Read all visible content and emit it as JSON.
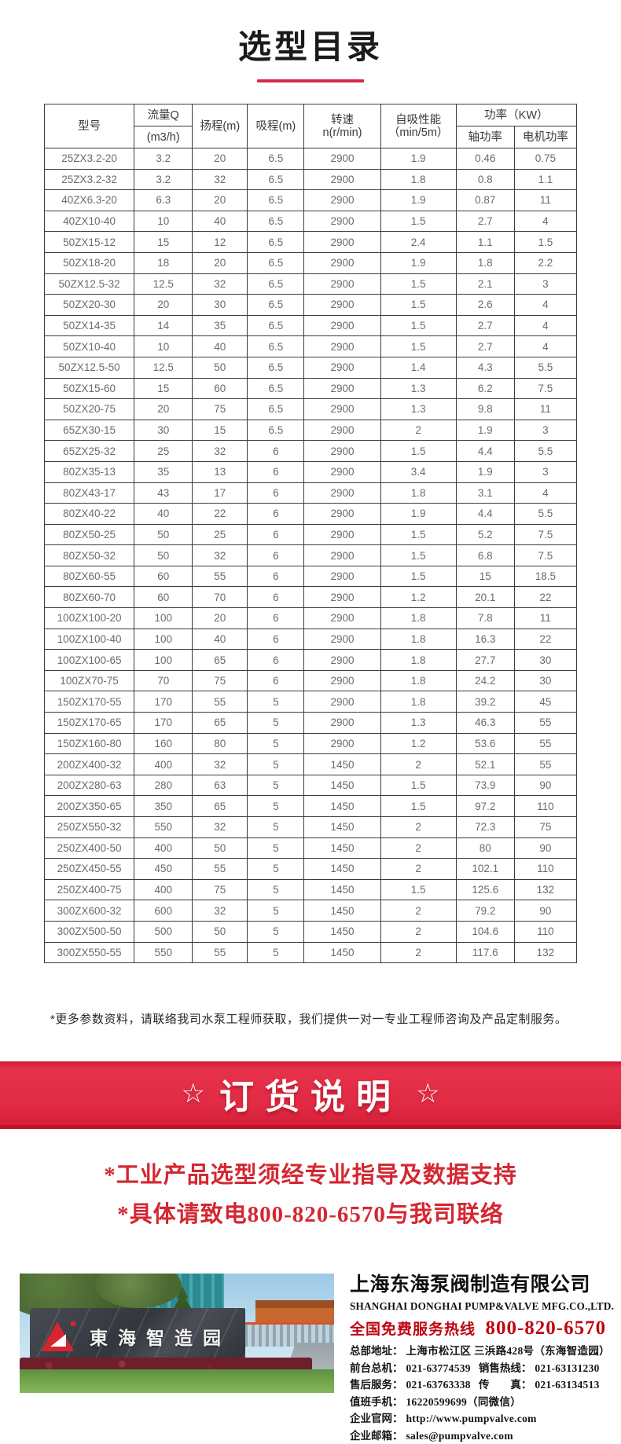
{
  "page": {
    "title": "选型目录"
  },
  "table": {
    "headers": {
      "model": "型号",
      "flow_line1": "流量Q",
      "flow_line2": "(m3/h)",
      "head": "扬程(m)",
      "suction": "吸程(m)",
      "speed_line1": "转速",
      "speed_line2": "n(r/min)",
      "self_priming_line1": "自吸性能",
      "self_priming_line2": "（min/5m）",
      "power_group": "功率（KW）",
      "shaft_power": "轴功率",
      "motor_power": "电机功率"
    },
    "rows": [
      [
        "25ZX3.2-20",
        "3.2",
        "20",
        "6.5",
        "2900",
        "1.9",
        "0.46",
        "0.75"
      ],
      [
        "25ZX3.2-32",
        "3.2",
        "32",
        "6.5",
        "2900",
        "1.8",
        "0.8",
        "1.1"
      ],
      [
        "40ZX6.3-20",
        "6.3",
        "20",
        "6.5",
        "2900",
        "1.9",
        "0.87",
        "11"
      ],
      [
        "40ZX10-40",
        "10",
        "40",
        "6.5",
        "2900",
        "1.5",
        "2.7",
        "4"
      ],
      [
        "50ZX15-12",
        "15",
        "12",
        "6.5",
        "2900",
        "2.4",
        "1.1",
        "1.5"
      ],
      [
        "50ZX18-20",
        "18",
        "20",
        "6.5",
        "2900",
        "1.9",
        "1.8",
        "2.2"
      ],
      [
        "50ZX12.5-32",
        "12.5",
        "32",
        "6.5",
        "2900",
        "1.5",
        "2.1",
        "3"
      ],
      [
        "50ZX20-30",
        "20",
        "30",
        "6.5",
        "2900",
        "1.5",
        "2.6",
        "4"
      ],
      [
        "50ZX14-35",
        "14",
        "35",
        "6.5",
        "2900",
        "1.5",
        "2.7",
        "4"
      ],
      [
        "50ZX10-40",
        "10",
        "40",
        "6.5",
        "2900",
        "1.5",
        "2.7",
        "4"
      ],
      [
        "50ZX12.5-50",
        "12.5",
        "50",
        "6.5",
        "2900",
        "1.4",
        "4.3",
        "5.5"
      ],
      [
        "50ZX15-60",
        "15",
        "60",
        "6.5",
        "2900",
        "1.3",
        "6.2",
        "7.5"
      ],
      [
        "50ZX20-75",
        "20",
        "75",
        "6.5",
        "2900",
        "1.3",
        "9.8",
        "11"
      ],
      [
        "65ZX30-15",
        "30",
        "15",
        "6.5",
        "2900",
        "2",
        "1.9",
        "3"
      ],
      [
        "65ZX25-32",
        "25",
        "32",
        "6",
        "2900",
        "1.5",
        "4.4",
        "5.5"
      ],
      [
        "80ZX35-13",
        "35",
        "13",
        "6",
        "2900",
        "3.4",
        "1.9",
        "3"
      ],
      [
        "80ZX43-17",
        "43",
        "17",
        "6",
        "2900",
        "1.8",
        "3.1",
        "4"
      ],
      [
        "80ZX40-22",
        "40",
        "22",
        "6",
        "2900",
        "1.9",
        "4.4",
        "5.5"
      ],
      [
        "80ZX50-25",
        "50",
        "25",
        "6",
        "2900",
        "1.5",
        "5.2",
        "7.5"
      ],
      [
        "80ZX50-32",
        "50",
        "32",
        "6",
        "2900",
        "1.5",
        "6.8",
        "7.5"
      ],
      [
        "80ZX60-55",
        "60",
        "55",
        "6",
        "2900",
        "1.5",
        "15",
        "18.5"
      ],
      [
        "80ZX60-70",
        "60",
        "70",
        "6",
        "2900",
        "1.2",
        "20.1",
        "22"
      ],
      [
        "100ZX100-20",
        "100",
        "20",
        "6",
        "2900",
        "1.8",
        "7.8",
        "11"
      ],
      [
        "100ZX100-40",
        "100",
        "40",
        "6",
        "2900",
        "1.8",
        "16.3",
        "22"
      ],
      [
        "100ZX100-65",
        "100",
        "65",
        "6",
        "2900",
        "1.8",
        "27.7",
        "30"
      ],
      [
        "100ZX70-75",
        "70",
        "75",
        "6",
        "2900",
        "1.8",
        "24.2",
        "30"
      ],
      [
        "150ZX170-55",
        "170",
        "55",
        "5",
        "2900",
        "1.8",
        "39.2",
        "45"
      ],
      [
        "150ZX170-65",
        "170",
        "65",
        "5",
        "2900",
        "1.3",
        "46.3",
        "55"
      ],
      [
        "150ZX160-80",
        "160",
        "80",
        "5",
        "2900",
        "1.2",
        "53.6",
        "55"
      ],
      [
        "200ZX400-32",
        "400",
        "32",
        "5",
        "1450",
        "2",
        "52.1",
        "55"
      ],
      [
        "200ZX280-63",
        "280",
        "63",
        "5",
        "1450",
        "1.5",
        "73.9",
        "90"
      ],
      [
        "200ZX350-65",
        "350",
        "65",
        "5",
        "1450",
        "1.5",
        "97.2",
        "110"
      ],
      [
        "250ZX550-32",
        "550",
        "32",
        "5",
        "1450",
        "2",
        "72.3",
        "75"
      ],
      [
        "250ZX400-50",
        "400",
        "50",
        "5",
        "1450",
        "2",
        "80",
        "90"
      ],
      [
        "250ZX450-55",
        "450",
        "55",
        "5",
        "1450",
        "2",
        "102.1",
        "110"
      ],
      [
        "250ZX400-75",
        "400",
        "75",
        "5",
        "1450",
        "1.5",
        "125.6",
        "132"
      ],
      [
        "300ZX600-32",
        "600",
        "32",
        "5",
        "1450",
        "2",
        "79.2",
        "90"
      ],
      [
        "300ZX500-50",
        "500",
        "50",
        "5",
        "1450",
        "2",
        "104.6",
        "110"
      ],
      [
        "300ZX550-55",
        "550",
        "55",
        "5",
        "1450",
        "2",
        "117.6",
        "132"
      ]
    ]
  },
  "note": "*更多参数资料，请联络我司水泵工程师获取，我们提供一对一专业工程师咨询及产品定制服务。",
  "order_banner": {
    "star_left": "☆",
    "label": "订货说明",
    "star_right": "☆"
  },
  "order_notices": [
    "*工业产品选型须经专业指导及数据支持",
    "*具体请致电800-820-6570与我司联络"
  ],
  "company": {
    "photo_sign_text": "東海智造园",
    "name_cn": "上海东海泵阀制造有限公司",
    "name_en": "SHANGHAI DONGHAI PUMP&VALVE MFG.CO.,LTD.",
    "hotline_label": "全国免费服务热线",
    "hotline_number": "800-820-6570",
    "contact_lines": [
      {
        "label": "总部地址：",
        "value": "上海市松江区 三浜路428号（东海智造园）"
      },
      {
        "label": "前台总机：",
        "value": "021-63774539",
        "label2": "销售热线：",
        "value2": "021-63131230"
      },
      {
        "label": "售后服务：",
        "value": "021-63763338",
        "label2": "传　　真：",
        "value2": "021-63134513"
      },
      {
        "label": "值班手机：",
        "value": "16220599699（同微信）"
      },
      {
        "label": "企业官网：",
        "value": "http://www.pumpvalve.com",
        "link": true
      },
      {
        "label": "企业邮箱：",
        "value": "sales@pumpvalve.com",
        "link": true
      }
    ]
  },
  "colors": {
    "accent_red": "#d4294b",
    "banner_red": "#e12b44",
    "notice_red": "#d42732",
    "hotline_red": "#c00413"
  }
}
